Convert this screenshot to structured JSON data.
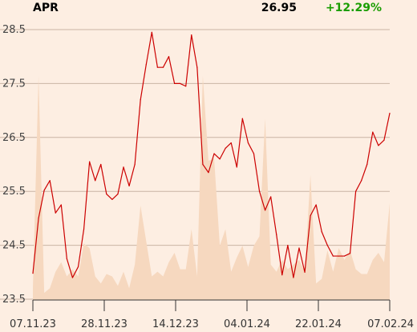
{
  "header": {
    "symbol": "APR",
    "price": "26.95",
    "change": "+12.29%"
  },
  "colors": {
    "background": "#fdeee2",
    "line": "#cc0000",
    "volume": "#f6d8bf",
    "grid": "#c9b4a4",
    "change_positive": "#1a9d00"
  },
  "chart_data": {
    "type": "line",
    "title": "",
    "xlabel": "",
    "ylabel": "",
    "ylim": [
      23.5,
      28.7
    ],
    "y_ticks": [
      "23.5",
      "24.5",
      "25.5",
      "26.5",
      "27.5",
      "28.5"
    ],
    "x_ticks": [
      "07.11.23",
      "28.11.23",
      "14.12.23",
      "04.01.24",
      "22.01.24",
      "07.02.24"
    ],
    "grid": true,
    "series": [
      {
        "values": [
          23.98,
          25.0,
          25.52,
          25.7,
          25.1,
          25.25,
          24.25,
          23.9,
          24.1,
          24.8,
          26.05,
          25.7,
          26.0,
          25.45,
          25.35,
          25.45,
          25.95,
          25.6,
          26.0,
          27.2,
          27.85,
          28.45,
          27.8,
          27.8,
          28.0,
          27.5,
          27.5,
          27.45,
          28.4,
          27.8,
          26.0,
          25.85,
          26.2,
          26.1,
          26.3,
          26.4,
          25.95,
          26.85,
          26.4,
          26.2,
          25.5,
          25.15,
          25.4,
          24.7,
          23.95,
          24.5,
          23.9,
          24.45,
          24.0,
          25.05,
          25.25,
          24.75,
          24.5,
          24.3,
          24.3,
          24.3,
          24.35,
          25.5,
          25.7,
          26.0,
          26.6,
          26.35,
          26.45,
          26.95
        ]
      }
    ],
    "volume": [
      0.05,
      0.95,
      0.03,
      0.05,
      0.12,
      0.16,
      0.1,
      0.13,
      0.1,
      0.24,
      0.22,
      0.1,
      0.07,
      0.11,
      0.1,
      0.06,
      0.12,
      0.05,
      0.15,
      0.4,
      0.25,
      0.1,
      0.12,
      0.1,
      0.16,
      0.2,
      0.13,
      0.13,
      0.3,
      0.1,
      0.95,
      0.59,
      0.6,
      0.23,
      0.3,
      0.12,
      0.18,
      0.23,
      0.14,
      0.23,
      0.27,
      0.77,
      0.15,
      0.12,
      0.17,
      0.13,
      0.15,
      0.17,
      0.12,
      0.53,
      0.07,
      0.09,
      0.21,
      0.12,
      0.22,
      0.17,
      0.21,
      0.13,
      0.11,
      0.11,
      0.17,
      0.2,
      0.16,
      0.41
    ]
  }
}
